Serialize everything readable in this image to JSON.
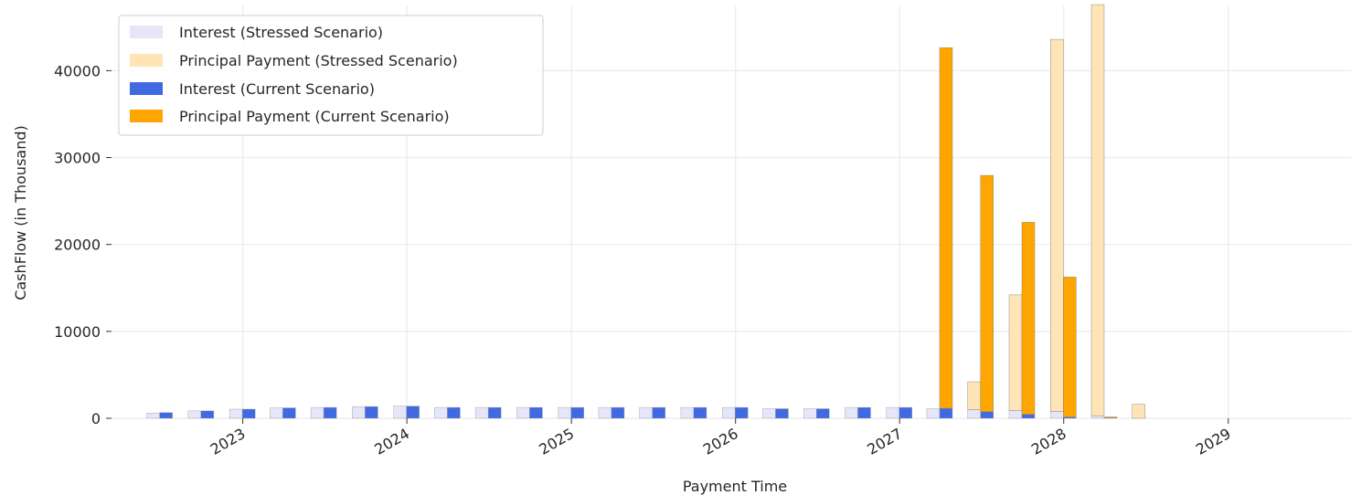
{
  "chart_data": {
    "type": "bar",
    "title": "",
    "xlabel": "Payment Time",
    "ylabel": "CashFlow (in Thousand)",
    "ylim": [
      0,
      47500
    ],
    "yticks": [
      0,
      10000,
      20000,
      30000,
      40000
    ],
    "ytick_labels": [
      "0",
      "10000",
      "20000",
      "30000",
      "40000"
    ],
    "xaxis": {
      "kind": "date",
      "start": "2022-03-15",
      "end": "2029-10-01"
    },
    "xticks": [
      "2023-01-01",
      "2024-01-01",
      "2025-01-01",
      "2026-01-01",
      "2027-01-01",
      "2028-01-01",
      "2029-01-01"
    ],
    "xtick_labels": [
      "2023",
      "2024",
      "2025",
      "2026",
      "2027",
      "2028",
      "2029"
    ],
    "grid": true,
    "legend_position": "top-left",
    "x": [
      "2022-06-30",
      "2022-09-30",
      "2022-12-31",
      "2023-03-31",
      "2023-06-30",
      "2023-09-30",
      "2023-12-31",
      "2024-03-31",
      "2024-06-30",
      "2024-09-30",
      "2024-12-31",
      "2025-03-31",
      "2025-06-30",
      "2025-09-30",
      "2025-12-31",
      "2026-03-31",
      "2026-06-30",
      "2026-09-30",
      "2026-12-31",
      "2027-03-31",
      "2027-06-30",
      "2027-09-30",
      "2027-12-31",
      "2028-03-31",
      "2028-06-30"
    ],
    "series": [
      {
        "name": "Interest (Stressed Scenario)",
        "color": "#e6e6fa",
        "values": [
          600,
          850,
          1050,
          1200,
          1250,
          1350,
          1400,
          1250,
          1250,
          1250,
          1250,
          1250,
          1250,
          1250,
          1250,
          1100,
          1100,
          1250,
          1250,
          1100,
          1000,
          900,
          800,
          300,
          0
        ]
      },
      {
        "name": "Principal Payment (Stressed Scenario)",
        "color": "#ffe4b5",
        "values": [
          0,
          0,
          0,
          0,
          0,
          0,
          0,
          0,
          0,
          0,
          0,
          0,
          0,
          0,
          0,
          0,
          0,
          0,
          0,
          0,
          3200,
          13300,
          42800,
          47300,
          1600
        ]
      },
      {
        "name": "Interest (Current Scenario)",
        "color": "#4169e1",
        "values": [
          650,
          850,
          1050,
          1200,
          1250,
          1350,
          1400,
          1250,
          1250,
          1250,
          1250,
          1250,
          1250,
          1250,
          1250,
          1100,
          1100,
          1250,
          1250,
          1150,
          750,
          450,
          150,
          50,
          0
        ]
      },
      {
        "name": "Principal Payment (Current Scenario)",
        "color": "#ffa500",
        "values": [
          0,
          0,
          0,
          0,
          0,
          0,
          0,
          0,
          0,
          0,
          0,
          0,
          0,
          0,
          0,
          0,
          0,
          0,
          0,
          41500,
          27200,
          22100,
          16100,
          100,
          0
        ]
      }
    ]
  }
}
